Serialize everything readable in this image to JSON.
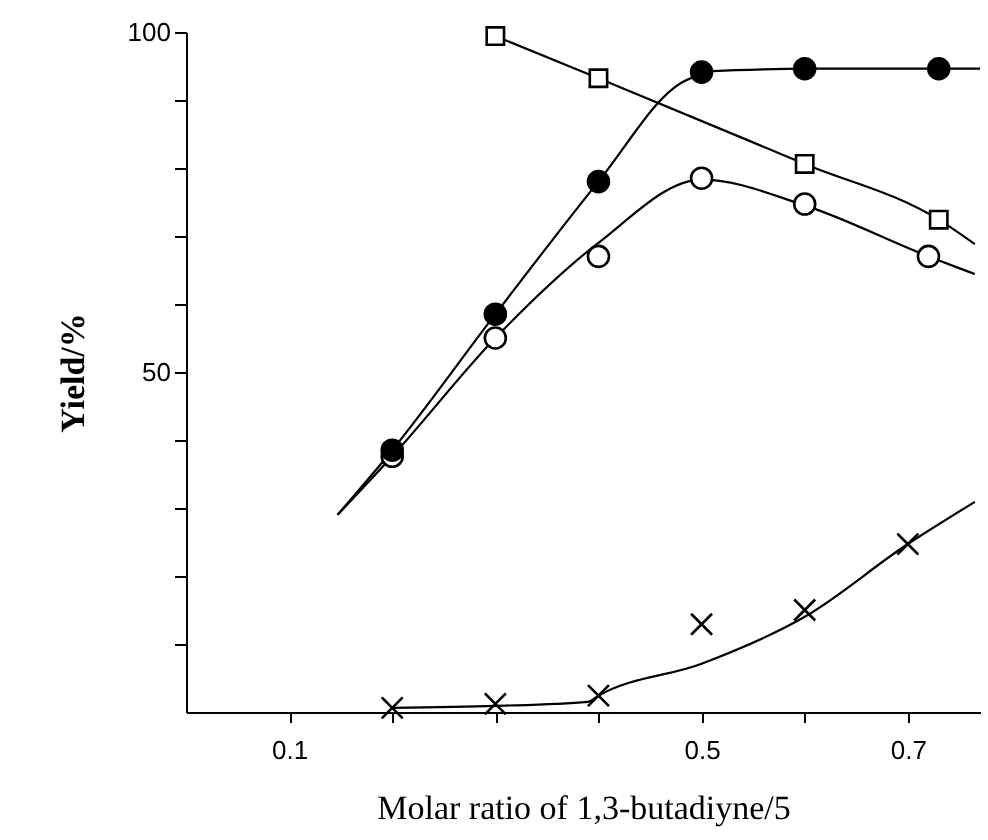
{
  "chart_data": {
    "type": "scatter",
    "xlabel": "Molar ratio of 1,3-butadiyne/5",
    "ylabel": "Yield/%",
    "xlim": [
      0,
      0.77
    ],
    "ylim": [
      0,
      100
    ],
    "xticks": [
      0.1,
      {
        "value": 0.2,
        "label": null
      },
      {
        "value": 0.3,
        "label": null
      },
      {
        "value": 0.4,
        "label": null
      },
      0.5,
      {
        "value": 0.6,
        "label": null
      },
      0.7
    ],
    "yticks": [
      {
        "value": 10,
        "label": null
      },
      {
        "value": 20,
        "label": null
      },
      {
        "value": 30,
        "label": null
      },
      {
        "value": 40,
        "label": null
      },
      50,
      {
        "value": 60,
        "label": null
      },
      {
        "value": 70,
        "label": null
      },
      {
        "value": 80,
        "label": null
      },
      {
        "value": 90,
        "label": null
      },
      100
    ],
    "grid": false,
    "series": [
      {
        "type": "line",
        "color": "#000000",
        "marker": "none",
        "x": [
          0.147,
          0.2,
          0.3,
          0.4,
          0.48,
          0.5
        ],
        "values": [
          29,
          38.5,
          58.5,
          78,
          92.5,
          93.8
        ]
      },
      {
        "type": "line",
        "color": "#000000",
        "marker": "none",
        "x": [
          0.5,
          0.6,
          0.73,
          0.77
        ],
        "values": [
          94.2,
          94.6,
          94.6,
          94.6
        ]
      },
      {
        "type": "line",
        "color": "#000000",
        "marker": "none",
        "x": [
          0.147,
          0.2,
          0.3,
          0.4,
          0.5,
          0.6,
          0.72,
          0.765
        ],
        "values": [
          29,
          37.6,
          55,
          69,
          78.3,
          74.5,
          67,
          64.4
        ]
      },
      {
        "type": "line",
        "color": "#000000",
        "marker": "none",
        "x": [
          0.3,
          0.4,
          0.6,
          0.73,
          0.765
        ],
        "values": [
          99.4,
          93.2,
          80.6,
          72.4,
          68.8
        ]
      },
      {
        "type": "line",
        "color": "#000000",
        "marker": "none",
        "x": [
          0.2,
          0.3,
          0.39,
          0.4,
          0.5,
          0.6,
          0.7,
          0.765
        ],
        "values": [
          0.6,
          0.9,
          1.5,
          2.4,
          7.1,
          14,
          24.7,
          30.9
        ]
      },
      {
        "type": "scatter",
        "color": "#ffffff",
        "marker": "circle",
        "x": [
          0.2,
          0.3,
          0.4,
          0.5,
          0.6,
          0.72
        ],
        "values": [
          37.6,
          55,
          67,
          78.5,
          74.7,
          67
        ]
      },
      {
        "type": "scatter",
        "color": "#000000",
        "marker": "circle",
        "x": [
          0.2,
          0.3,
          0.4,
          0.5,
          0.6,
          0.73
        ],
        "values": [
          38.5,
          58.5,
          78,
          94.1,
          94.6,
          94.6
        ]
      },
      {
        "type": "scatter",
        "color": "#ffffff",
        "marker": "square",
        "x": [
          0.3,
          0.4,
          0.6,
          0.73
        ],
        "values": [
          99.4,
          93.2,
          80.6,
          72.4
        ]
      },
      {
        "type": "scatter",
        "color": "#000000",
        "marker": "cross",
        "x": [
          0.2,
          0.3,
          0.4,
          0.5,
          0.6,
          0.7
        ],
        "values": [
          0.6,
          1.2,
          2.4,
          12.9,
          15,
          24.7
        ]
      }
    ]
  }
}
